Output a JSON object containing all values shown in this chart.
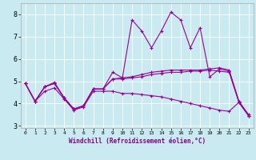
{
  "xlabel": "Windchill (Refroidissement éolien,°C)",
  "x_values": [
    0,
    1,
    2,
    3,
    4,
    5,
    6,
    7,
    8,
    9,
    10,
    11,
    12,
    13,
    14,
    15,
    16,
    17,
    18,
    19,
    20,
    21,
    22,
    23
  ],
  "line_spiky": [
    4.9,
    4.1,
    4.75,
    4.95,
    4.25,
    3.75,
    3.9,
    4.65,
    4.65,
    5.4,
    5.15,
    7.75,
    7.25,
    6.5,
    7.25,
    8.1,
    7.75,
    6.5,
    7.4,
    5.2,
    5.55,
    5.45,
    4.1,
    3.45
  ],
  "line_mid1": [
    4.9,
    4.1,
    4.75,
    4.9,
    4.25,
    3.75,
    3.9,
    4.65,
    4.65,
    5.1,
    5.1,
    5.15,
    5.2,
    5.3,
    5.35,
    5.4,
    5.4,
    5.45,
    5.45,
    5.5,
    5.45,
    5.4,
    4.05,
    3.45
  ],
  "line_mid2": [
    4.9,
    4.1,
    4.75,
    4.9,
    4.25,
    3.75,
    3.9,
    4.65,
    4.65,
    5.1,
    5.15,
    5.2,
    5.3,
    5.4,
    5.45,
    5.5,
    5.5,
    5.5,
    5.5,
    5.55,
    5.6,
    5.5,
    4.1,
    3.5
  ],
  "line_decline": [
    4.9,
    4.1,
    4.55,
    4.7,
    4.2,
    3.7,
    3.85,
    4.55,
    4.55,
    4.55,
    4.45,
    4.45,
    4.4,
    4.35,
    4.3,
    4.2,
    4.1,
    4.0,
    3.9,
    3.8,
    3.7,
    3.65,
    4.05,
    3.45
  ],
  "ylim_min": 2.9,
  "ylim_max": 8.5,
  "yticks": [
    3,
    4,
    5,
    6,
    7,
    8
  ],
  "color": "#990099",
  "bg_color": "#c8eaf0",
  "grid_color": "#ffffff"
}
